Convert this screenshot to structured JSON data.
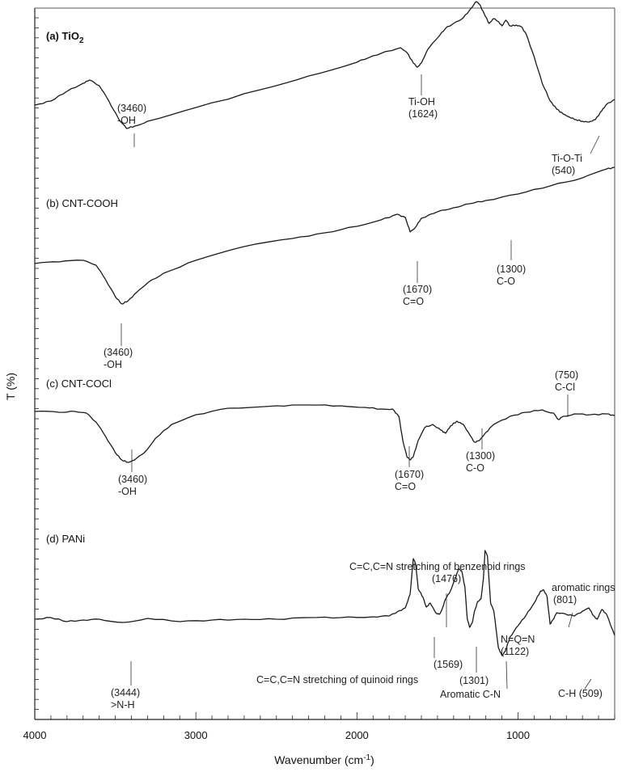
{
  "chart_data": {
    "type": "line",
    "xlabel": "Wavenumber (cm",
    "xlabel_sup": "-1",
    "xlabel_end": ")",
    "ylabel": "T (%)",
    "xlim": [
      4000,
      400
    ],
    "x_reversed": true,
    "x_ticks": [
      4000,
      3000,
      2000,
      1000
    ],
    "stacked_offset_spectra": true,
    "panels": [
      {
        "label": "(a) TiO",
        "label_sub": "2",
        "bold": true,
        "points": [
          [
            4000,
            0.55
          ],
          [
            3900,
            0.6
          ],
          [
            3800,
            0.72
          ],
          [
            3700,
            0.82
          ],
          [
            3660,
            0.86
          ],
          [
            3600,
            0.79
          ],
          [
            3540,
            0.6
          ],
          [
            3480,
            0.38
          ],
          [
            3430,
            0.26
          ],
          [
            3380,
            0.29
          ],
          [
            3300,
            0.35
          ],
          [
            3000,
            0.52
          ],
          [
            2600,
            0.74
          ],
          [
            2300,
            0.91
          ],
          [
            2000,
            1.08
          ],
          [
            1900,
            1.16
          ],
          [
            1800,
            1.22
          ],
          [
            1730,
            1.26
          ],
          [
            1690,
            1.2
          ],
          [
            1650,
            1.07
          ],
          [
            1624,
            1.02
          ],
          [
            1600,
            1.07
          ],
          [
            1560,
            1.24
          ],
          [
            1500,
            1.38
          ],
          [
            1450,
            1.5
          ],
          [
            1400,
            1.56
          ],
          [
            1340,
            1.63
          ],
          [
            1290,
            1.75
          ],
          [
            1260,
            1.83
          ],
          [
            1240,
            1.8
          ],
          [
            1210,
            1.68
          ],
          [
            1180,
            1.56
          ],
          [
            1150,
            1.62
          ],
          [
            1120,
            1.58
          ],
          [
            1100,
            1.53
          ],
          [
            1075,
            1.6
          ],
          [
            1050,
            1.53
          ],
          [
            1010,
            1.54
          ],
          [
            980,
            1.52
          ],
          [
            950,
            1.43
          ],
          [
            900,
            1.15
          ],
          [
            850,
            0.82
          ],
          [
            800,
            0.6
          ],
          [
            760,
            0.5
          ],
          [
            720,
            0.44
          ],
          [
            680,
            0.4
          ],
          [
            640,
            0.37
          ],
          [
            600,
            0.35
          ],
          [
            560,
            0.34
          ],
          [
            520,
            0.37
          ],
          [
            480,
            0.48
          ],
          [
            450,
            0.56
          ],
          [
            400,
            0.62
          ]
        ]
      },
      {
        "label": "(b) CNT-COOH",
        "label_sub": "",
        "bold": false,
        "points": [
          [
            4000,
            0.86
          ],
          [
            3850,
            0.88
          ],
          [
            3700,
            0.9
          ],
          [
            3620,
            0.84
          ],
          [
            3560,
            0.66
          ],
          [
            3500,
            0.45
          ],
          [
            3460,
            0.36
          ],
          [
            3420,
            0.4
          ],
          [
            3370,
            0.5
          ],
          [
            3300,
            0.62
          ],
          [
            3200,
            0.74
          ],
          [
            3000,
            0.9
          ],
          [
            2700,
            1.07
          ],
          [
            2400,
            1.17
          ],
          [
            2200,
            1.24
          ],
          [
            2000,
            1.32
          ],
          [
            1850,
            1.4
          ],
          [
            1750,
            1.47
          ],
          [
            1700,
            1.43
          ],
          [
            1670,
            1.25
          ],
          [
            1640,
            1.3
          ],
          [
            1600,
            1.42
          ],
          [
            1500,
            1.5
          ],
          [
            1400,
            1.55
          ],
          [
            1300,
            1.6
          ],
          [
            1200,
            1.64
          ],
          [
            1000,
            1.72
          ],
          [
            800,
            1.82
          ],
          [
            600,
            1.92
          ],
          [
            450,
            2.03
          ],
          [
            400,
            2.05
          ]
        ]
      },
      {
        "label": "(c) CNT-COCl",
        "label_sub": "",
        "bold": false,
        "points": [
          [
            4000,
            1.06
          ],
          [
            3850,
            1.05
          ],
          [
            3750,
            1.06
          ],
          [
            3680,
            1.04
          ],
          [
            3620,
            0.93
          ],
          [
            3560,
            0.75
          ],
          [
            3500,
            0.55
          ],
          [
            3460,
            0.46
          ],
          [
            3420,
            0.43
          ],
          [
            3380,
            0.46
          ],
          [
            3320,
            0.55
          ],
          [
            3250,
            0.73
          ],
          [
            3150,
            0.9
          ],
          [
            3000,
            1.02
          ],
          [
            2800,
            1.1
          ],
          [
            2500,
            1.13
          ],
          [
            2300,
            1.14
          ],
          [
            2100,
            1.13
          ],
          [
            1950,
            1.11
          ],
          [
            1850,
            1.09
          ],
          [
            1780,
            1.09
          ],
          [
            1740,
            1.0
          ],
          [
            1715,
            0.7
          ],
          [
            1690,
            0.5
          ],
          [
            1670,
            0.46
          ],
          [
            1650,
            0.5
          ],
          [
            1620,
            0.7
          ],
          [
            1580,
            0.86
          ],
          [
            1530,
            0.9
          ],
          [
            1480,
            0.83
          ],
          [
            1450,
            0.79
          ],
          [
            1420,
            0.88
          ],
          [
            1380,
            0.94
          ],
          [
            1340,
            0.9
          ],
          [
            1300,
            0.77
          ],
          [
            1270,
            0.68
          ],
          [
            1240,
            0.7
          ],
          [
            1200,
            0.8
          ],
          [
            1150,
            0.9
          ],
          [
            1050,
            1.0
          ],
          [
            950,
            1.05
          ],
          [
            850,
            1.08
          ],
          [
            780,
            1.04
          ],
          [
            750,
            0.96
          ],
          [
            720,
            1.0
          ],
          [
            650,
            1.03
          ],
          [
            550,
            1.02
          ],
          [
            450,
            1.03
          ],
          [
            400,
            1.01
          ]
        ]
      },
      {
        "label": "(d) PANi",
        "label_sub": "",
        "bold": false,
        "points": [
          [
            4000,
            0.7
          ],
          [
            3900,
            0.72
          ],
          [
            3800,
            0.67
          ],
          [
            3700,
            0.69
          ],
          [
            3600,
            0.7
          ],
          [
            3450,
            0.66
          ],
          [
            3300,
            0.71
          ],
          [
            3100,
            0.67
          ],
          [
            2900,
            0.69
          ],
          [
            2700,
            0.7
          ],
          [
            2500,
            0.7
          ],
          [
            2300,
            0.72
          ],
          [
            2100,
            0.72
          ],
          [
            1900,
            0.73
          ],
          [
            1800,
            0.74
          ],
          [
            1750,
            0.79
          ],
          [
            1700,
            0.84
          ],
          [
            1670,
            1.01
          ],
          [
            1650,
            1.45
          ],
          [
            1635,
            1.38
          ],
          [
            1620,
            1.08
          ],
          [
            1590,
            0.97
          ],
          [
            1569,
            0.85
          ],
          [
            1545,
            0.9
          ],
          [
            1510,
            0.78
          ],
          [
            1490,
            0.76
          ],
          [
            1476,
            0.8
          ],
          [
            1450,
            0.95
          ],
          [
            1420,
            1.05
          ],
          [
            1390,
            1.2
          ],
          [
            1370,
            1.32
          ],
          [
            1350,
            1.3
          ],
          [
            1330,
            1.1
          ],
          [
            1315,
            0.7
          ],
          [
            1301,
            0.6
          ],
          [
            1285,
            0.65
          ],
          [
            1270,
            0.8
          ],
          [
            1250,
            0.92
          ],
          [
            1230,
            0.95
          ],
          [
            1215,
            1.2
          ],
          [
            1205,
            1.55
          ],
          [
            1190,
            1.48
          ],
          [
            1170,
            0.9
          ],
          [
            1150,
            0.8
          ],
          [
            1122,
            0.35
          ],
          [
            1100,
            0.25
          ],
          [
            1080,
            0.3
          ],
          [
            1050,
            0.48
          ],
          [
            1000,
            0.62
          ],
          [
            950,
            0.75
          ],
          [
            900,
            0.9
          ],
          [
            860,
            1.05
          ],
          [
            840,
            1.06
          ],
          [
            820,
            0.98
          ],
          [
            801,
            0.64
          ],
          [
            780,
            0.7
          ],
          [
            760,
            0.78
          ],
          [
            700,
            0.76
          ],
          [
            650,
            0.74
          ],
          [
            600,
            0.8
          ],
          [
            560,
            0.84
          ],
          [
            530,
            0.74
          ],
          [
            509,
            0.7
          ],
          [
            480,
            0.82
          ],
          [
            450,
            0.76
          ],
          [
            400,
            0.5
          ]
        ]
      }
    ],
    "annotations": [
      {
        "id": "a-oh",
        "panel": 0,
        "lines": [
          "(3460)",
          "-OH"
        ],
        "x": 3420
      },
      {
        "id": "a-tioh",
        "panel": 0,
        "lines": [
          "Ti-OH",
          "(1624)"
        ],
        "x": 1624
      },
      {
        "id": "a-tioti",
        "panel": 0,
        "lines": [
          "Ti-O-Ti",
          "(540)"
        ],
        "x": 560
      },
      {
        "id": "b-oh",
        "panel": 1,
        "lines": [
          "(3460)",
          "-OH"
        ],
        "x": 3460
      },
      {
        "id": "b-co1670",
        "panel": 1,
        "lines": [
          "(1670)",
          "C=O"
        ],
        "x": 1670
      },
      {
        "id": "b-co1300",
        "panel": 1,
        "lines": [
          "(1300)",
          "C-O"
        ],
        "x": 1090
      },
      {
        "id": "c-oh",
        "panel": 2,
        "lines": [
          "(3460)",
          "-OH"
        ],
        "x": 3420
      },
      {
        "id": "c-co1670",
        "panel": 2,
        "lines": [
          "(1670)",
          "C=O"
        ],
        "x": 1670
      },
      {
        "id": "c-co1300",
        "panel": 2,
        "lines": [
          "(1300)",
          "C-O"
        ],
        "x": 1270
      },
      {
        "id": "c-ccl",
        "panel": 2,
        "lines": [
          "(750)",
          "C-Cl"
        ],
        "x": 750
      },
      {
        "id": "d-nh",
        "panel": 3,
        "lines": [
          "(3444)",
          ">N-H"
        ],
        "x": 3444
      },
      {
        "id": "d-benz",
        "panel": 3,
        "lines": [
          "C=C,C=N stretching of benzenoid rings",
          "(1476)"
        ],
        "x": 1476
      },
      {
        "id": "d-1569",
        "panel": 3,
        "lines": [
          "(1569)"
        ],
        "x": 1569
      },
      {
        "id": "d-quin",
        "panel": 3,
        "lines": [
          "C=C,C=N stretching of quinoid rings"
        ],
        "x": 1569
      },
      {
        "id": "d-1301",
        "panel": 3,
        "lines": [
          "(1301)"
        ],
        "x": 1301
      },
      {
        "id": "d-arcn",
        "panel": 3,
        "lines": [
          "Aromatic C-N"
        ],
        "x": 1301
      },
      {
        "id": "d-nqn",
        "panel": 3,
        "lines": [
          "N=Q=N",
          "(1122)"
        ],
        "x": 1122
      },
      {
        "id": "d-arom",
        "panel": 3,
        "lines": [
          "aromatic rings",
          "(801)"
        ],
        "x": 801
      },
      {
        "id": "d-ch",
        "panel": 3,
        "lines": [
          "C-H (509)"
        ],
        "x": 509
      }
    ]
  }
}
